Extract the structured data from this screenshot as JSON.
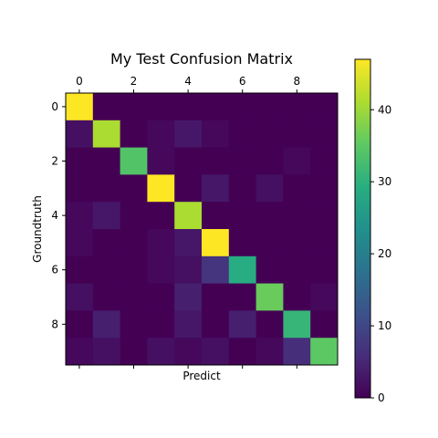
{
  "chart_data": {
    "type": "heatmap",
    "title": "My Test Confusion Matrix",
    "xlabel": "Predict",
    "ylabel": "Groundtruth",
    "x_tick_labels": [
      "0",
      "2",
      "4",
      "6",
      "8"
    ],
    "x_tick_positions": [
      0,
      2,
      4,
      6,
      8
    ],
    "y_tick_labels": [
      "0",
      "2",
      "4",
      "6",
      "8"
    ],
    "y_tick_positions": [
      0,
      2,
      4,
      6,
      8
    ],
    "colorbar": {
      "colormap": "viridis",
      "range": [
        0,
        47
      ],
      "tick_labels": [
        "0",
        "10",
        "20",
        "30",
        "40"
      ],
      "tick_values": [
        0,
        10,
        20,
        30,
        40
      ]
    },
    "matrix": [
      [
        47,
        0,
        0,
        0,
        0,
        0,
        0,
        0,
        0,
        0
      ],
      [
        2,
        41,
        0,
        1,
        3,
        1,
        0,
        0,
        0,
        0
      ],
      [
        0,
        0,
        34,
        1,
        0,
        0,
        0,
        0,
        1,
        0
      ],
      [
        0,
        0,
        0,
        47,
        0,
        3,
        0,
        2,
        0,
        0
      ],
      [
        1,
        3,
        0,
        0,
        41,
        0,
        0,
        0,
        0,
        0
      ],
      [
        1,
        0,
        0,
        1,
        3,
        47,
        0,
        0,
        0,
        0
      ],
      [
        0,
        0,
        0,
        1,
        2,
        7,
        29,
        0,
        0,
        0
      ],
      [
        2,
        0,
        0,
        0,
        4,
        0,
        0,
        36,
        0,
        1
      ],
      [
        0,
        4,
        0,
        0,
        3,
        0,
        4,
        0,
        31,
        0
      ],
      [
        1,
        2,
        0,
        2,
        1,
        2,
        0,
        1,
        6,
        35
      ]
    ]
  }
}
